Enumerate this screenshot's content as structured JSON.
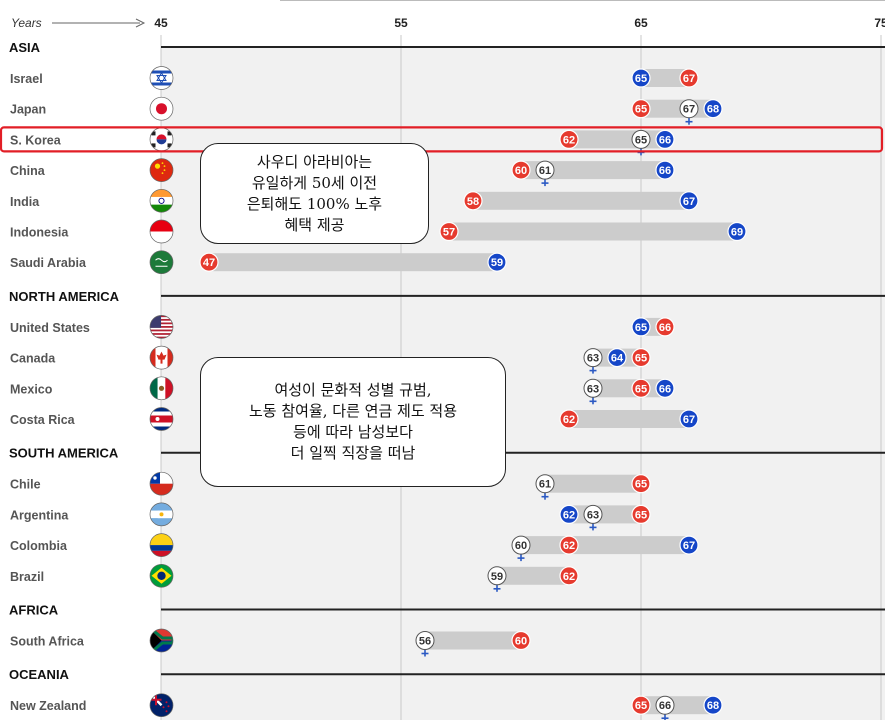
{
  "chart_data": {
    "type": "range-dot",
    "axis": {
      "label": "Years",
      "ticks": [
        45,
        55,
        65,
        75
      ],
      "tick_labels": [
        "45",
        "55",
        "65",
        "75"
      ],
      "xlim": [
        45,
        75
      ]
    },
    "colors": {
      "women": "#e63a2e",
      "men": "#1546c8",
      "both": "#ffffff",
      "bar": "#cccccc",
      "plot_bg": "#f1f1f1",
      "highlight": "#e21e26"
    },
    "highlight_country": "S. Korea",
    "regions": [
      {
        "name": "ASIA",
        "countries": [
          {
            "name": "Israel",
            "flag": "israel-flag-icon",
            "men": 65,
            "women": 67
          },
          {
            "name": "Japan",
            "flag": "japan-flag-icon",
            "women": 65,
            "both": 67,
            "men": 68
          },
          {
            "name": "S. Korea",
            "flag": "south-korea-flag-icon",
            "women": 62,
            "both": 65,
            "men": 66
          },
          {
            "name": "China",
            "flag": "china-flag-icon",
            "women": 60,
            "both": 61,
            "men": 66
          },
          {
            "name": "India",
            "flag": "india-flag-icon",
            "women": 58,
            "men": 67
          },
          {
            "name": "Indonesia",
            "flag": "indonesia-flag-icon",
            "women": 57,
            "men": 69
          },
          {
            "name": "Saudi Arabia",
            "flag": "saudi-arabia-flag-icon",
            "women": 47,
            "men": 59
          }
        ]
      },
      {
        "name": "NORTH AMERICA",
        "countries": [
          {
            "name": "United States",
            "flag": "usa-flag-icon",
            "men": 65,
            "women": 66
          },
          {
            "name": "Canada",
            "flag": "canada-flag-icon",
            "both": 63,
            "men": 64,
            "women": 65
          },
          {
            "name": "Mexico",
            "flag": "mexico-flag-icon",
            "both": 63,
            "women": 65,
            "men": 66
          },
          {
            "name": "Costa Rica",
            "flag": "costa-rica-flag-icon",
            "women": 62,
            "men": 67
          }
        ]
      },
      {
        "name": "SOUTH AMERICA",
        "countries": [
          {
            "name": "Chile",
            "flag": "chile-flag-icon",
            "both": 61,
            "women": 65
          },
          {
            "name": "Argentina",
            "flag": "argentina-flag-icon",
            "men": 62,
            "both": 63,
            "women": 65
          },
          {
            "name": "Colombia",
            "flag": "colombia-flag-icon",
            "both": 60,
            "women": 62,
            "men": 67
          },
          {
            "name": "Brazil",
            "flag": "brazil-flag-icon",
            "both": 59,
            "women": 62
          }
        ]
      },
      {
        "name": "AFRICA",
        "countries": [
          {
            "name": "South Africa",
            "flag": "south-africa-flag-icon",
            "both": 56,
            "women": 60
          }
        ]
      },
      {
        "name": "OCEANIA",
        "countries": [
          {
            "name": "New Zealand",
            "flag": "new-zealand-flag-icon",
            "women": 65,
            "both": 66,
            "men": 68
          }
        ]
      }
    ]
  },
  "annotations": {
    "saudi_note": "사우디 아라비아는\n유일하게 50세 이전\n은퇴해도 100% 노후\n혜택 제공",
    "women_note": "여성이 문화적 성별 규범,\n노동 참여율, 다른 연금 제도 적용\n등에 따라 남성보다\n더 일찍 직장을 떠남"
  }
}
